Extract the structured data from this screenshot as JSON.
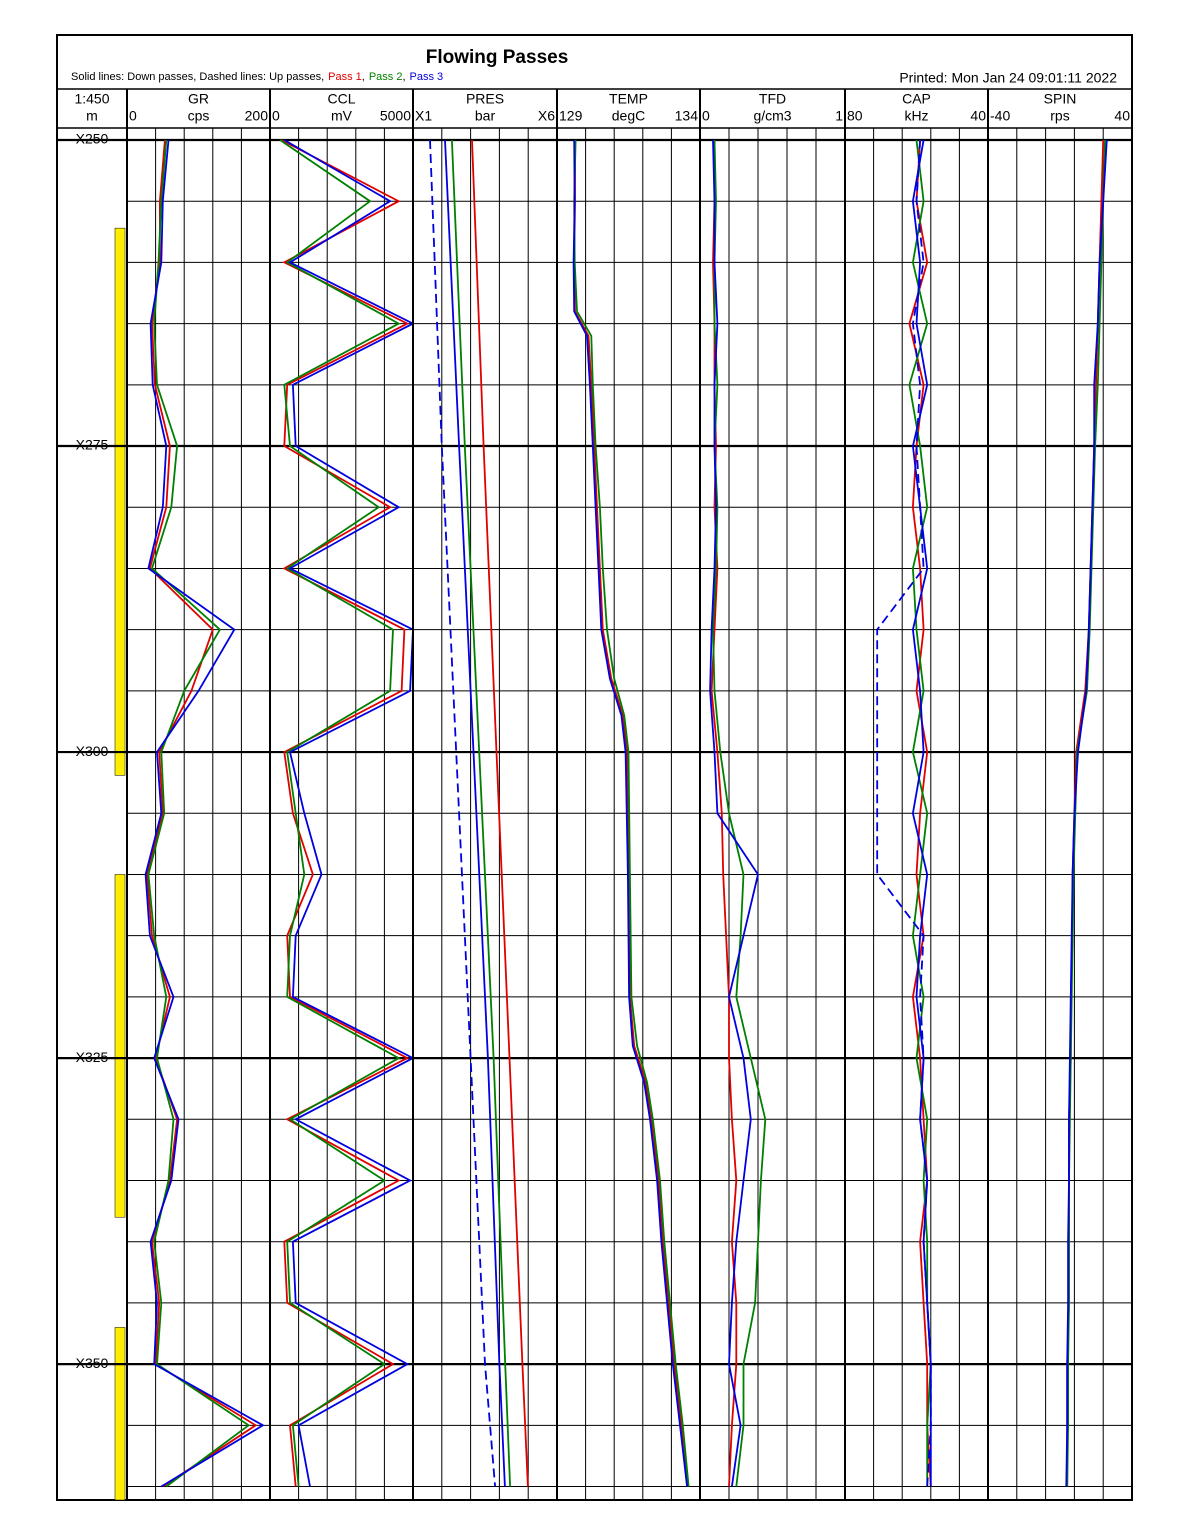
{
  "header": {
    "title": "Flowing Passes",
    "legend_prefix": "Solid lines: Down passes, Dashed lines: Up passes,",
    "legend_separator": ",",
    "legend": [
      {
        "name": "Pass 1",
        "color": "#e00000"
      },
      {
        "name": "Pass 2",
        "color": "#008000"
      },
      {
        "name": "Pass 3",
        "color": "#0000e0"
      }
    ],
    "printed": "Printed: Mon Jan 24 09:01:11 2022"
  },
  "depth_track": {
    "scale": "1:450",
    "unit": "m",
    "ylim": [
      250,
      361.1
    ],
    "yticks": [
      {
        "value": 250,
        "label": "X250"
      },
      {
        "value": 275,
        "label": "X275"
      },
      {
        "value": 300,
        "label": "X300"
      },
      {
        "value": 325,
        "label": "X325"
      },
      {
        "value": 350,
        "label": "X350"
      }
    ],
    "minor_grid": [
      255,
      260,
      265,
      270,
      280,
      285,
      290,
      295,
      305,
      310,
      315,
      320,
      330,
      335,
      340,
      345,
      355,
      360
    ],
    "zones": [
      [
        257.2,
        301.9
      ],
      [
        310.0,
        338.0
      ],
      [
        347.0,
        361.1
      ]
    ],
    "zone_color": "#ffee00"
  },
  "chart_data": [
    {
      "type": "line",
      "name": "GR",
      "unit": "cps",
      "xlim": [
        0,
        200
      ],
      "xticks": [
        0,
        200
      ],
      "depth": [
        250,
        255,
        260,
        265,
        270,
        275,
        280,
        285,
        290,
        295,
        300,
        305,
        310,
        315,
        320,
        325,
        330,
        335,
        340,
        345,
        350,
        355,
        360
      ],
      "series": [
        {
          "pass": 0,
          "style": "solid",
          "values": [
            53,
            46,
            46,
            35,
            39,
            60,
            55,
            32,
            120,
            90,
            45,
            50,
            28,
            35,
            60,
            40,
            70,
            60,
            35,
            45,
            40,
            180,
            50
          ]
        },
        {
          "pass": 1,
          "style": "solid",
          "values": [
            55,
            48,
            44,
            38,
            42,
            70,
            62,
            35,
            130,
            80,
            48,
            52,
            30,
            38,
            55,
            42,
            65,
            58,
            38,
            48,
            42,
            170,
            55
          ]
        },
        {
          "pass": 2,
          "style": "solid",
          "values": [
            58,
            50,
            48,
            33,
            36,
            55,
            50,
            30,
            150,
            100,
            42,
            48,
            26,
            32,
            65,
            38,
            72,
            62,
            33,
            42,
            38,
            190,
            48
          ]
        }
      ]
    },
    {
      "type": "line",
      "name": "CCL",
      "unit": "mV",
      "xlim": [
        0,
        5000
      ],
      "xticks": [
        0,
        5000
      ],
      "depth": [
        250,
        255,
        260,
        265,
        270,
        275,
        280,
        285,
        290,
        295,
        300,
        305,
        310,
        315,
        320,
        325,
        330,
        335,
        340,
        345,
        350,
        355,
        360
      ],
      "series": [
        {
          "pass": 0,
          "style": "solid",
          "values": [
            400,
            4500,
            500,
            4800,
            600,
            500,
            4200,
            500,
            4700,
            4600,
            500,
            800,
            1500,
            600,
            700,
            4800,
            600,
            4500,
            500,
            600,
            4300,
            700,
            900
          ]
        },
        {
          "pass": 1,
          "style": "solid",
          "values": [
            350,
            3500,
            600,
            4500,
            500,
            700,
            3800,
            600,
            4300,
            4200,
            600,
            900,
            1200,
            700,
            600,
            4500,
            700,
            4000,
            600,
            700,
            4000,
            800,
            1000
          ]
        },
        {
          "pass": 2,
          "style": "solid",
          "values": [
            500,
            4200,
            700,
            5000,
            800,
            900,
            4500,
            700,
            5000,
            4900,
            700,
            1200,
            1800,
            900,
            800,
            5000,
            900,
            4900,
            800,
            900,
            4800,
            1000,
            1400
          ]
        }
      ]
    },
    {
      "type": "line",
      "name": "PRES",
      "unit": "bar",
      "xlim": [
        1,
        6
      ],
      "xticks": [
        {
          "value": 1,
          "label": "X1"
        },
        {
          "value": 6,
          "label": "X6"
        }
      ],
      "depth": [
        250,
        275,
        300,
        325,
        350,
        360
      ],
      "series": [
        {
          "pass": 0,
          "style": "solid",
          "values": [
            3.05,
            3.45,
            3.9,
            4.35,
            4.8,
            4.99
          ]
        },
        {
          "pass": 1,
          "style": "solid",
          "values": [
            2.35,
            2.8,
            3.3,
            3.8,
            4.2,
            4.37
          ]
        },
        {
          "pass": 2,
          "style": "solid",
          "values": [
            2.11,
            2.6,
            3.1,
            3.6,
            4.0,
            4.19
          ]
        },
        {
          "pass": 2,
          "style": "dashed",
          "values": [
            1.59,
            2.0,
            2.5,
            3.0,
            3.5,
            3.85
          ]
        }
      ]
    },
    {
      "type": "line",
      "name": "TEMP",
      "unit": "degC",
      "xlim": [
        129,
        134
      ],
      "xticks": [
        129,
        134
      ],
      "depth": [
        250,
        255,
        260,
        264,
        266,
        270,
        275,
        280,
        285,
        290,
        294,
        297,
        300,
        310,
        320,
        324,
        327,
        330,
        335,
        340,
        345,
        350,
        355,
        360
      ],
      "series": [
        {
          "pass": 0,
          "style": "solid",
          "values": [
            129.63,
            129.63,
            129.6,
            129.63,
            130.1,
            130.2,
            130.3,
            130.4,
            130.5,
            130.6,
            130.9,
            131.3,
            131.45,
            131.5,
            131.55,
            131.7,
            132.1,
            132.3,
            132.55,
            132.7,
            132.9,
            133.1,
            133.35,
            133.55
          ]
        },
        {
          "pass": 1,
          "style": "solid",
          "values": [
            129.65,
            129.6,
            129.62,
            129.7,
            130.2,
            130.25,
            130.35,
            130.5,
            130.6,
            130.75,
            131.0,
            131.35,
            131.5,
            131.55,
            131.6,
            131.8,
            132.15,
            132.35,
            132.6,
            132.75,
            132.95,
            133.15,
            133.4,
            133.6
          ]
        },
        {
          "pass": 2,
          "style": "solid",
          "values": [
            129.6,
            129.62,
            129.58,
            129.6,
            130.05,
            130.15,
            130.25,
            130.35,
            130.45,
            130.55,
            130.85,
            131.25,
            131.4,
            131.48,
            131.52,
            131.65,
            132.05,
            132.25,
            132.5,
            132.65,
            132.85,
            133.05,
            133.3,
            133.55
          ]
        }
      ]
    },
    {
      "type": "line",
      "name": "TFD",
      "unit": "g/cm3",
      "xlim": [
        0,
        1
      ],
      "xticks": [
        0,
        1
      ],
      "depth": [
        250,
        255,
        260,
        265,
        270,
        275,
        280,
        285,
        290,
        295,
        300,
        305,
        310,
        315,
        320,
        325,
        330,
        335,
        340,
        345,
        350,
        355,
        360
      ],
      "series": [
        {
          "pass": 0,
          "style": "solid",
          "values": [
            0.1,
            0.1,
            0.09,
            0.1,
            0.1,
            0.11,
            0.1,
            0.12,
            0.1,
            0.08,
            0.12,
            0.15,
            0.16,
            0.18,
            0.2,
            0.2,
            0.22,
            0.25,
            0.22,
            0.25,
            0.25,
            0.22,
            0.2
          ]
        },
        {
          "pass": 1,
          "style": "solid",
          "values": [
            0.1,
            0.11,
            0.1,
            0.1,
            0.12,
            0.1,
            0.12,
            0.11,
            0.09,
            0.1,
            0.14,
            0.2,
            0.3,
            0.28,
            0.25,
            0.35,
            0.45,
            0.42,
            0.4,
            0.38,
            0.3,
            0.3,
            0.25
          ]
        },
        {
          "pass": 2,
          "style": "solid",
          "values": [
            0.09,
            0.1,
            0.1,
            0.12,
            0.1,
            0.1,
            0.11,
            0.1,
            0.08,
            0.07,
            0.1,
            0.12,
            0.4,
            0.3,
            0.2,
            0.3,
            0.35,
            0.3,
            0.25,
            0.22,
            0.2,
            0.28,
            0.22
          ]
        }
      ]
    },
    {
      "type": "line",
      "name": "CAP",
      "unit": "kHz",
      "xlim": [
        80,
        40
      ],
      "xticks": [
        80,
        40
      ],
      "depth": [
        250,
        255,
        260,
        265,
        270,
        275,
        280,
        285,
        290,
        295,
        300,
        305,
        310,
        315,
        320,
        325,
        330,
        335,
        340,
        345,
        350,
        355,
        360
      ],
      "series": [
        {
          "pass": 0,
          "style": "solid",
          "values": [
            59,
            60,
            57,
            62,
            58,
            60,
            61,
            59,
            58,
            60,
            57,
            59,
            60,
            58,
            61,
            59,
            58,
            57,
            59,
            58,
            57,
            57,
            56
          ]
        },
        {
          "pass": 1,
          "style": "solid",
          "values": [
            60,
            58,
            61,
            57,
            62,
            59,
            57,
            61,
            60,
            58,
            61,
            57,
            59,
            61,
            58,
            60,
            57,
            58,
            57,
            57,
            56,
            57,
            57
          ]
        },
        {
          "pass": 2,
          "style": "solid",
          "values": [
            58,
            61,
            59,
            60,
            57,
            61,
            59,
            57,
            61,
            59,
            58,
            61,
            57,
            59,
            60,
            58,
            59,
            57,
            58,
            57,
            56,
            56,
            56
          ]
        },
        {
          "pass": 2,
          "style": "dashed",
          "values": [
            59,
            60,
            58,
            61,
            59,
            60,
            59,
            58,
            71,
            71,
            71,
            71,
            71,
            58,
            59,
            58,
            59,
            57,
            58,
            57,
            56,
            56,
            57
          ]
        }
      ]
    },
    {
      "type": "line",
      "name": "SPIN",
      "unit": "rps",
      "xlim": [
        -40,
        40
      ],
      "xticks": [
        -40,
        40
      ],
      "depth": [
        250,
        255,
        260,
        265,
        270,
        275,
        280,
        285,
        290,
        295,
        300,
        305,
        310,
        315,
        320,
        325,
        330,
        335,
        340,
        345,
        350,
        355,
        360
      ],
      "series": [
        {
          "pass": 0,
          "style": "solid",
          "values": [
            24,
            23,
            22,
            21,
            20,
            19,
            18,
            17,
            16,
            14,
            9,
            8,
            7,
            7,
            6,
            6,
            5,
            5,
            5,
            5,
            4,
            4,
            4
          ]
        },
        {
          "pass": 1,
          "style": "solid",
          "values": [
            25,
            24,
            23,
            22,
            21,
            19.5,
            18.5,
            17.5,
            16.5,
            15,
            9.5,
            8.5,
            7.5,
            7,
            6.5,
            6,
            5.5,
            5,
            5,
            5,
            4.5,
            4.5,
            4
          ]
        },
        {
          "pass": 2,
          "style": "solid",
          "values": [
            26,
            24,
            22,
            21,
            19,
            19,
            18,
            17,
            16,
            14.5,
            10,
            8,
            7,
            6.5,
            6,
            5.5,
            5,
            5,
            4.5,
            4.5,
            4,
            4,
            3.5
          ]
        }
      ]
    }
  ]
}
